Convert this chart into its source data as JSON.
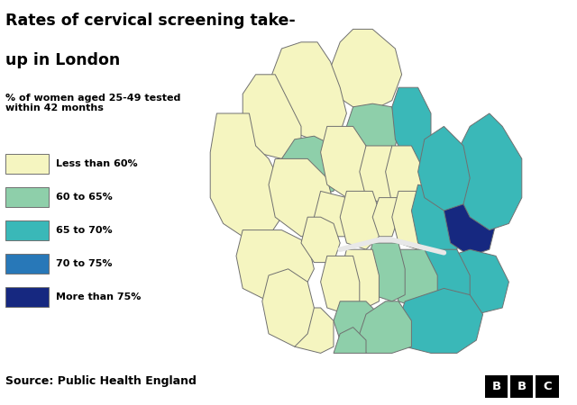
{
  "title_line1": "Rates of cervical screening take-",
  "title_line2": "up in London",
  "subtitle": "% of women aged 25-49 tested\nwithin 42 months",
  "source": "Source: Public Health England",
  "colors": {
    "0": "#f5f5c0",
    "1": "#8ecfaa",
    "2": "#3ab8b8",
    "3": "#2878b8",
    "4": "#162880"
  },
  "legend_labels": [
    "Less than 60%",
    "60 to 65%",
    "65 to 70%",
    "70 to 75%",
    "More than 75%"
  ],
  "edge_color": "#707070",
  "bg_color": "#ffffff",
  "river_color": "#e8e8e8"
}
